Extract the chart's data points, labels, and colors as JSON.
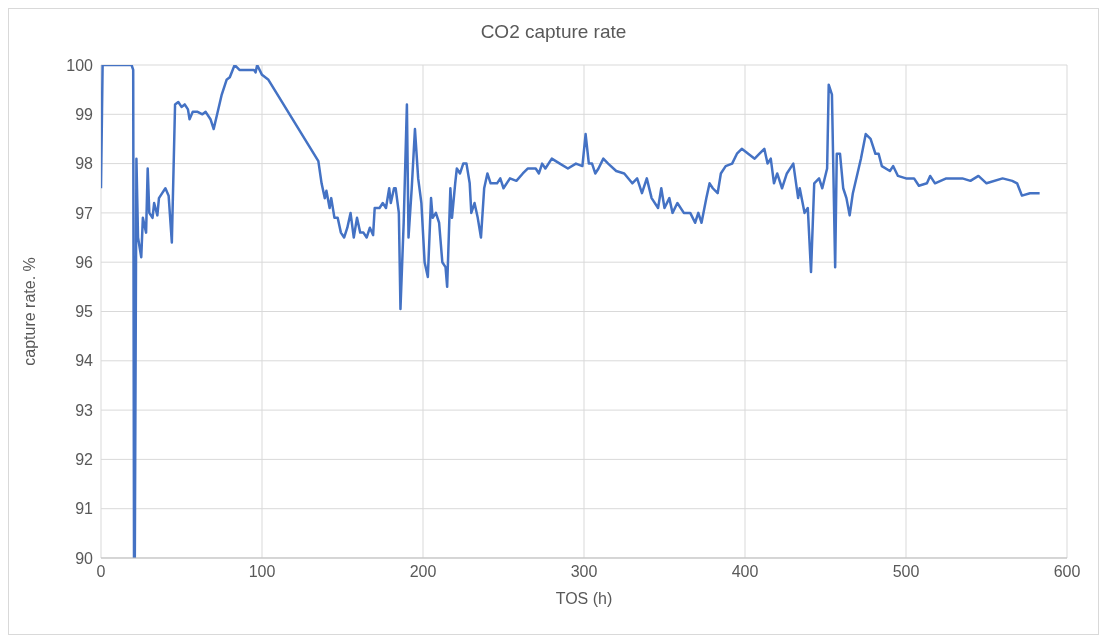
{
  "chart_data": {
    "type": "line",
    "title": "CO2 capture rate",
    "xlabel": "TOS (h)",
    "ylabel": "capture rate. %",
    "xlim": [
      0,
      600
    ],
    "xticks": [
      0,
      100,
      200,
      300,
      400,
      500,
      600
    ],
    "ylim": [
      90,
      100
    ],
    "yticks": [
      90,
      91,
      92,
      93,
      94,
      95,
      96,
      97,
      98,
      99,
      100
    ],
    "grid": true,
    "marker": "none",
    "line_style": "solid",
    "series": [
      {
        "color": "#4472c4",
        "x": [
          0,
          1,
          19,
          20,
          20.5,
          21,
          22,
          23,
          25,
          26,
          28,
          29,
          30,
          32,
          33,
          35,
          36,
          38,
          40,
          42,
          44,
          46,
          48,
          50,
          52,
          54,
          55,
          57,
          60,
          63,
          65,
          68,
          70,
          75,
          78,
          80,
          83,
          86,
          95,
          96,
          97,
          100,
          104,
          135,
          137,
          139,
          140,
          142,
          143,
          145,
          147,
          149,
          151,
          153,
          155,
          157,
          159,
          161,
          163,
          165,
          167,
          169,
          170,
          173,
          175,
          177,
          179,
          180,
          182,
          183,
          185,
          186,
          188,
          190,
          191,
          193,
          195,
          197,
          199,
          201,
          203,
          205,
          206,
          208,
          210,
          212,
          214,
          215,
          217,
          218,
          220,
          221,
          223,
          225,
          227,
          229,
          230,
          232,
          234,
          236,
          238,
          240,
          242,
          246,
          248,
          250,
          254,
          258,
          262,
          265,
          270,
          272,
          274,
          276,
          280,
          285,
          290,
          295,
          299,
          301,
          303,
          305,
          307,
          309,
          312,
          315,
          320,
          325,
          330,
          333,
          336,
          339,
          342,
          346,
          348,
          350,
          353,
          355,
          358,
          362,
          366,
          369,
          371,
          373,
          376,
          378,
          380,
          383,
          385,
          388,
          392,
          395,
          398,
          402,
          406,
          409,
          412,
          414,
          416,
          418,
          420,
          423,
          426,
          430,
          433,
          434,
          437,
          439,
          441,
          443,
          446,
          448,
          451,
          452,
          454,
          456,
          457,
          459,
          461,
          463,
          465,
          467,
          472,
          475,
          478,
          481,
          483,
          485,
          490,
          492,
          495,
          500,
          505,
          508,
          513,
          515,
          518,
          525,
          535,
          540,
          545,
          550,
          560,
          566,
          569,
          572,
          577,
          583
        ],
        "values": [
          97.5,
          100,
          100,
          99.9,
          90,
          90,
          98.1,
          96.5,
          96.1,
          96.9,
          96.6,
          97.9,
          97.0,
          96.9,
          97.2,
          96.95,
          97.3,
          97.4,
          97.5,
          97.35,
          96.4,
          99.2,
          99.25,
          99.15,
          99.2,
          99.1,
          98.9,
          99.05,
          99.05,
          99.0,
          99.05,
          98.9,
          98.7,
          99.4,
          99.7,
          99.75,
          100,
          99.9,
          99.9,
          99.85,
          100,
          99.8,
          99.7,
          98.05,
          97.6,
          97.3,
          97.45,
          97.1,
          97.3,
          96.9,
          96.9,
          96.6,
          96.5,
          96.7,
          97.0,
          96.5,
          96.9,
          96.6,
          96.6,
          96.5,
          96.7,
          96.55,
          97.1,
          97.1,
          97.2,
          97.1,
          97.5,
          97.2,
          97.5,
          97.5,
          97.0,
          95.05,
          96.8,
          99.2,
          96.5,
          97.5,
          98.7,
          97.7,
          97.2,
          96.0,
          95.7,
          97.3,
          96.9,
          97.0,
          96.8,
          96.0,
          95.9,
          95.5,
          97.5,
          96.9,
          97.6,
          97.9,
          97.8,
          98.0,
          98.0,
          97.6,
          97.0,
          97.2,
          96.9,
          96.5,
          97.5,
          97.8,
          97.6,
          97.6,
          97.7,
          97.5,
          97.7,
          97.65,
          97.8,
          97.9,
          97.9,
          97.8,
          98.0,
          97.9,
          98.1,
          98.0,
          97.9,
          98.0,
          97.95,
          98.6,
          98.0,
          98.0,
          97.8,
          97.9,
          98.1,
          98.0,
          97.85,
          97.8,
          97.6,
          97.7,
          97.4,
          97.7,
          97.3,
          97.1,
          97.5,
          97.1,
          97.3,
          97.0,
          97.2,
          97.0,
          97.0,
          96.8,
          97.0,
          96.8,
          97.3,
          97.6,
          97.5,
          97.4,
          97.8,
          97.95,
          98.0,
          98.2,
          98.3,
          98.2,
          98.1,
          98.2,
          98.3,
          98.0,
          98.1,
          97.6,
          97.8,
          97.5,
          97.8,
          98.0,
          97.3,
          97.5,
          97.0,
          97.1,
          95.8,
          97.6,
          97.7,
          97.5,
          97.9,
          99.6,
          99.4,
          95.9,
          98.2,
          98.2,
          97.5,
          97.3,
          96.95,
          97.4,
          98.1,
          98.6,
          98.5,
          98.2,
          98.2,
          97.95,
          97.85,
          97.95,
          97.75,
          97.7,
          97.7,
          97.55,
          97.6,
          97.75,
          97.6,
          97.7,
          97.7,
          97.65,
          97.75,
          97.6,
          97.7,
          97.65,
          97.6,
          97.35,
          97.4,
          97.4
        ]
      }
    ]
  }
}
